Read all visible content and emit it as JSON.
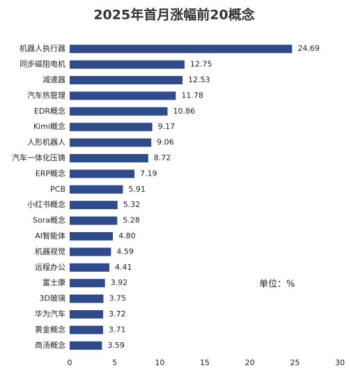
{
  "chart_data": {
    "type": "hbar",
    "title": "2025年首月涨幅前20概念",
    "categories": [
      "机器人执行器",
      "同步磁阻电机",
      "减速器",
      "汽车热管理",
      "EDR概念",
      "Kimi概念",
      "人形机器人",
      "汽车一体化压铸",
      "ERP概念",
      "PCB",
      "小红书概念",
      "Sora概念",
      "AI智能体",
      "机器视觉",
      "远程办公",
      "富士康",
      "3D玻璃",
      "华为汽车",
      "黄金概念",
      "商汤概念"
    ],
    "values": [
      24.69,
      12.75,
      12.53,
      11.78,
      10.86,
      9.17,
      9.06,
      8.72,
      7.19,
      5.91,
      5.32,
      5.28,
      4.8,
      4.59,
      4.41,
      3.92,
      3.75,
      3.72,
      3.71,
      3.59
    ],
    "value_labels": [
      "24.69",
      "12.75",
      "12.53",
      "11.78",
      "10.86",
      "9.17",
      "9.06",
      "8.72",
      "7.19",
      "5.91",
      "5.32",
      "5.28",
      "4.80",
      "4.59",
      "4.41",
      "3.92",
      "3.75",
      "3.72",
      "3.71",
      "3.59"
    ],
    "color": "#2f4b8c",
    "xlim": [
      0,
      30
    ],
    "xticks": [
      0,
      5,
      10,
      15,
      20,
      25,
      30
    ],
    "grid": false,
    "annotation": "单位：%"
  }
}
